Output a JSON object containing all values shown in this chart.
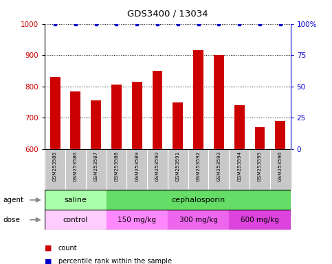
{
  "title": "GDS3400 / 13034",
  "samples": [
    "GSM253585",
    "GSM253586",
    "GSM253587",
    "GSM253588",
    "GSM253589",
    "GSM253590",
    "GSM253591",
    "GSM253592",
    "GSM253593",
    "GSM253594",
    "GSM253595",
    "GSM253596"
  ],
  "counts": [
    830,
    785,
    755,
    805,
    815,
    850,
    750,
    915,
    900,
    740,
    670,
    690
  ],
  "ylim": [
    600,
    1000
  ],
  "yticks_left": [
    600,
    700,
    800,
    900,
    1000
  ],
  "yticks_right": [
    0,
    25,
    50,
    75,
    100
  ],
  "bar_color": "#cc0000",
  "dot_color": "#0000cc",
  "agent_labels": [
    {
      "label": "saline",
      "start": 0,
      "end": 2,
      "color": "#aaffaa"
    },
    {
      "label": "cephalosporin",
      "start": 3,
      "end": 11,
      "color": "#66dd66"
    }
  ],
  "dose_labels": [
    {
      "label": "control",
      "start": 0,
      "end": 2,
      "color": "#ffccff"
    },
    {
      "label": "150 mg/kg",
      "start": 3,
      "end": 5,
      "color": "#ff88ff"
    },
    {
      "label": "300 mg/kg",
      "start": 6,
      "end": 8,
      "color": "#ee66ee"
    },
    {
      "label": "600 mg/kg",
      "start": 9,
      "end": 11,
      "color": "#dd44dd"
    }
  ],
  "tick_label_color": "#cc0000",
  "right_tick_color": "#0000cc",
  "bar_width": 0.5,
  "label_bg": "#c8c8c8"
}
